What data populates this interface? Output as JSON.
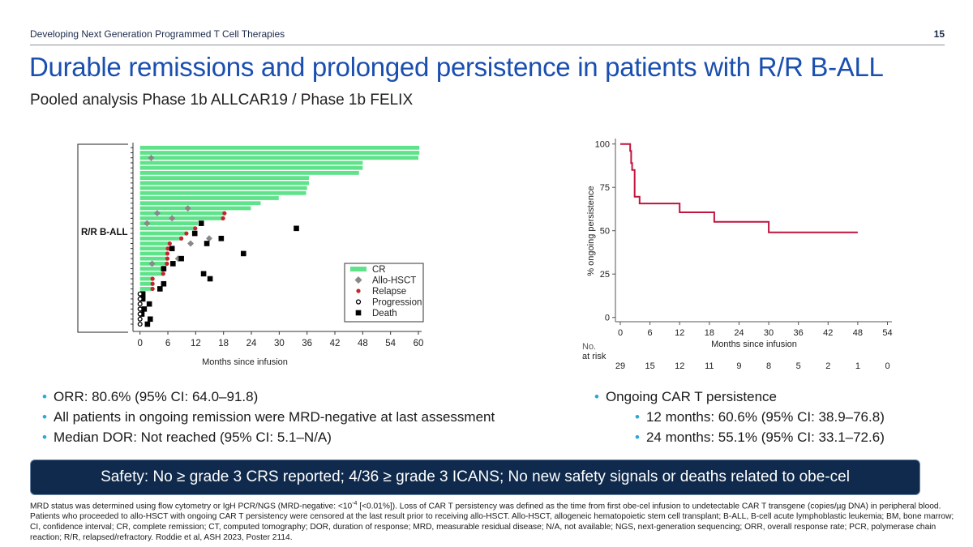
{
  "header": {
    "text": "Developing Next Generation Programmed T Cell Therapies",
    "page_number": "15"
  },
  "title": "Durable remissions and prolonged persistence in patients with R/R B-ALL",
  "subtitle": "Pooled analysis Phase 1b ALLCAR19 / Phase 1b FELIX",
  "colors": {
    "title": "#1a4fb0",
    "cr": "#5ee38a",
    "allo": "#888888",
    "relapse": "#c0282d",
    "km_line": "#c0143c",
    "safety_bg": "#0f2a4c",
    "bullet": "#2fa6d8"
  },
  "chart_data": [
    {
      "type": "swimmer",
      "group_label": "R/R B-ALL",
      "xlabel": "Months since infusion",
      "xlim": [
        0,
        60
      ],
      "xticks": [
        0,
        6,
        12,
        18,
        24,
        30,
        36,
        42,
        48,
        54,
        60
      ],
      "legend": {
        "placement": "bottom-right",
        "entries": [
          "CR",
          "Allo-HSCT",
          "Relapse",
          "Progression",
          "Death"
        ]
      },
      "rows": [
        {
          "cr": 60.2
        },
        {
          "cr": 60.2
        },
        {
          "cr": 60,
          "allo": [
            2.4
          ]
        },
        {
          "cr": 48
        },
        {
          "cr": 48
        },
        {
          "cr": 47.2
        },
        {
          "cr": 36.4
        },
        {
          "cr": 36.4
        },
        {
          "cr": 36
        },
        {
          "cr": 35.8
        },
        {
          "cr": 29.9
        },
        {
          "cr": 26
        },
        {
          "cr": 23.9,
          "allo": [
            10.3
          ]
        },
        {
          "cr": 18.2,
          "allo": [
            3.7
          ],
          "relapse": [
            18.2
          ]
        },
        {
          "cr": 17.9,
          "allo": [
            6.9
          ],
          "relapse": [
            17.9
          ]
        },
        {
          "cr": 12.5,
          "allo": [
            1.5
          ],
          "death": [
            13.2
          ]
        },
        {
          "cr": 11.9,
          "relapse": [
            11.9
          ],
          "death": [
            33.7
          ]
        },
        {
          "cr": 10,
          "relapse": [
            10
          ],
          "death": [
            11.8
          ]
        },
        {
          "cr": 8.9,
          "relapse": [
            8.9
          ],
          "allo": [
            14.9
          ],
          "death": [
            17.5
          ]
        },
        {
          "cr": 6.4,
          "relapse": [
            6.4
          ],
          "allo": [
            10.9
          ],
          "death": [
            14.4
          ]
        },
        {
          "cr": 6,
          "relapse": [
            6
          ],
          "death": [
            6.9
          ]
        },
        {
          "cr": 5.9,
          "relapse": [
            5.9
          ],
          "death": [
            22.3
          ]
        },
        {
          "cr": 5.9,
          "relapse": [
            5.9
          ],
          "allo": [
            8.2
          ],
          "death": [
            8.9
          ]
        },
        {
          "cr": 5.8,
          "relapse": [
            5.8
          ],
          "allo": [
            2.6
          ],
          "death": [
            7.1
          ]
        },
        {
          "cr": 5.1,
          "death": [
            5.1
          ]
        },
        {
          "cr": 5,
          "relapse": [
            5
          ],
          "death": [
            13.7
          ]
        },
        {
          "cr": 2.7,
          "relapse": [
            2.7
          ],
          "death": [
            15.1
          ]
        },
        {
          "cr": 2.7,
          "relapse": [
            2.7
          ],
          "death": [
            5.1
          ]
        },
        {
          "cr": 2.7,
          "relapse": [
            2.7
          ],
          "death": [
            4.3
          ]
        },
        {
          "progression": [
            0
          ],
          "death": [
            0.6
          ]
        },
        {
          "progression": [
            0
          ],
          "death": [
            0.6
          ]
        },
        {
          "progression": [
            0
          ],
          "death": [
            2
          ]
        },
        {
          "progression": [
            0
          ],
          "death": [
            0.9
          ]
        },
        {
          "progression": [
            0
          ],
          "death": [
            0.4
          ]
        },
        {
          "progression": [
            0
          ],
          "death": [
            2.2
          ]
        },
        {
          "progression": [
            0
          ],
          "death": [
            1.6
          ]
        }
      ]
    },
    {
      "type": "line",
      "step": true,
      "xlabel": "Months since infusion",
      "ylabel": "% ongoing persistence",
      "xlim": [
        0,
        54
      ],
      "ylim": [
        0,
        100
      ],
      "xticks": [
        0,
        6,
        12,
        18,
        24,
        30,
        36,
        42,
        48,
        54
      ],
      "yticks": [
        0,
        25,
        50,
        75,
        100
      ],
      "points": [
        [
          0,
          100
        ],
        [
          2,
          100
        ],
        [
          2,
          96
        ],
        [
          2.2,
          96
        ],
        [
          2.2,
          89
        ],
        [
          2.4,
          89
        ],
        [
          2.4,
          85
        ],
        [
          2.9,
          85
        ],
        [
          2.9,
          69.6
        ],
        [
          3.9,
          69.6
        ],
        [
          3.9,
          65.7
        ],
        [
          12,
          65.7
        ],
        [
          12,
          60.6
        ],
        [
          19,
          60.6
        ],
        [
          19,
          55.1
        ],
        [
          30,
          55.1
        ],
        [
          30,
          49
        ],
        [
          48,
          49
        ]
      ],
      "risk_table": {
        "label_line1": "No.",
        "label_line2": "at risk",
        "values": [
          "29",
          "15",
          "12",
          "11",
          "9",
          "8",
          "5",
          "2",
          "1",
          "0"
        ]
      }
    }
  ],
  "left_bullets": [
    "ORR: 80.6% (95% CI: 64.0–91.8)",
    "All patients in ongoing remission were MRD-negative at last assessment",
    "Median DOR: Not reached (95% CI: 5.1–N/A)"
  ],
  "right_bullets": {
    "heading": "Ongoing CAR T persistence",
    "items": [
      "12 months: 60.6% (95% CI: 38.9–76.8)",
      "24 months: 55.1% (95% CI: 33.1–72.6)"
    ]
  },
  "safety": "Safety: No ≥ grade 3 CRS reported; 4/36 ≥ grade 3 ICANS; No new safety signals or deaths related to obe-cel",
  "footnote": {
    "pre": "MRD status was determined using flow cytometry or IgH PCR/NGS (MRD-negative: <10",
    "sup": "-4",
    "post": " [<0.01%]). Loss of CAR T persistency was defined as the time from first obe-cel infusion to undetectable CAR T transgene (copies/µg DNA) in peripheral blood. Patients who proceeded to allo-HSCT with ongoing CAR T persistency were censored at the last result prior to receiving allo-HSCT. Allo-HSCT, allogeneic hematopoietic stem cell transplant; B-ALL, B-cell acute lymphoblastic leukemia; BM, bone marrow; CI, confidence interval; CR, complete remission; CT, computed tomography; DOR, duration of response; MRD, measurable residual disease; N/A, not available; NGS, next-generation sequencing; ORR, overall response rate; PCR, polymerase chain reaction; R/R, relapsed/refractory.  Roddie et al, ASH 2023, Poster 2114."
  }
}
